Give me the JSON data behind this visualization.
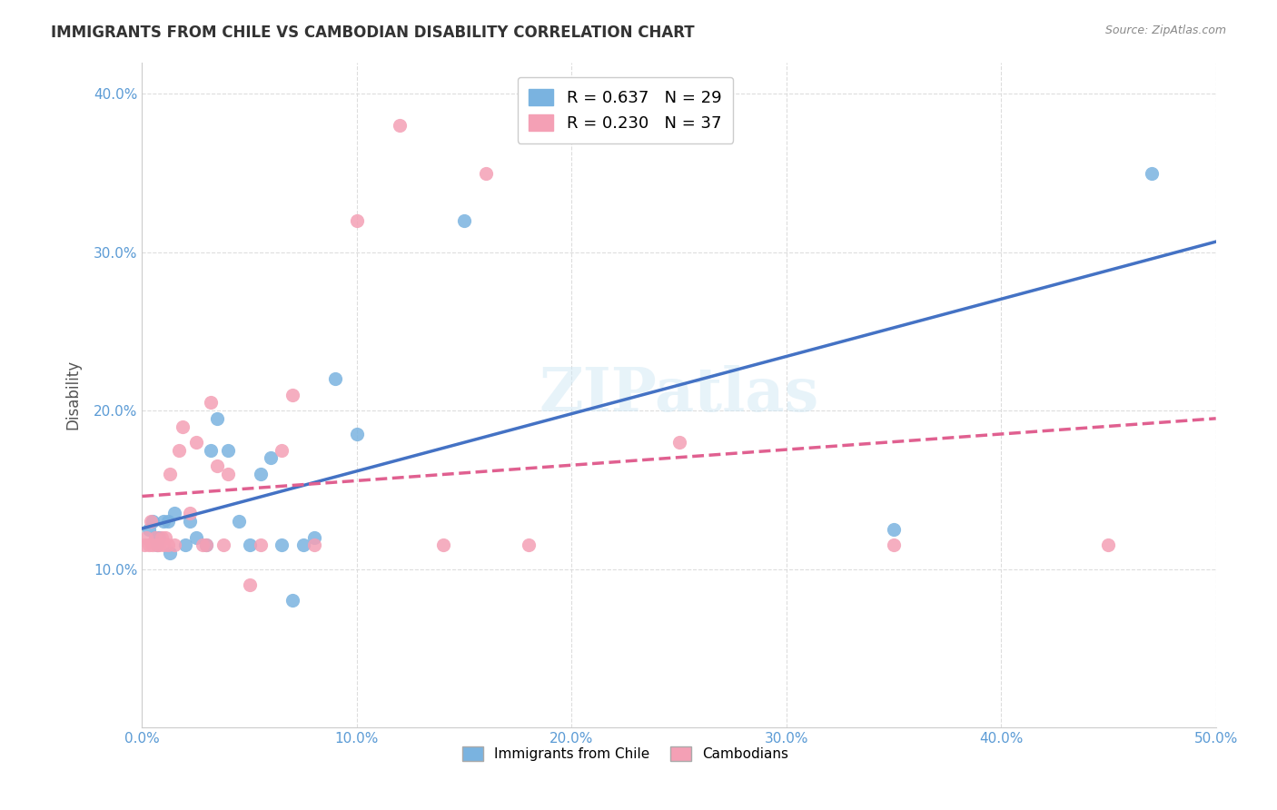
{
  "title": "IMMIGRANTS FROM CHILE VS CAMBODIAN DISABILITY CORRELATION CHART",
  "source": "Source: ZipAtlas.com",
  "xlabel_color": "#5b9bd5",
  "ylabel": "Disability",
  "xlim": [
    0.0,
    0.5
  ],
  "ylim": [
    0.0,
    0.42
  ],
  "xticks": [
    0.0,
    0.1,
    0.2,
    0.3,
    0.4,
    0.5
  ],
  "yticks": [
    0.1,
    0.2,
    0.3,
    0.4
  ],
  "ytick_labels": [
    "10.0%",
    "20.0%",
    "30.0%",
    "40.0%"
  ],
  "xtick_labels": [
    "0.0%",
    "10.0%",
    "20.0%",
    "30.0%",
    "40.0%",
    "50.0%"
  ],
  "legend_r1": "R = 0.637",
  "legend_n1": "N = 29",
  "legend_r2": "R = 0.230",
  "legend_n2": "N = 37",
  "blue_color": "#7ab3e0",
  "pink_color": "#f4a0b5",
  "blue_line_color": "#4472c4",
  "pink_line_color": "#e06090",
  "watermark": "ZIPatlas",
  "blue_scatter_x": [
    0.003,
    0.005,
    0.006,
    0.007,
    0.008,
    0.01,
    0.012,
    0.013,
    0.015,
    0.02,
    0.022,
    0.025,
    0.03,
    0.032,
    0.035,
    0.04,
    0.045,
    0.05,
    0.055,
    0.06,
    0.065,
    0.07,
    0.075,
    0.08,
    0.09,
    0.1,
    0.15,
    0.35,
    0.47
  ],
  "blue_scatter_y": [
    0.125,
    0.13,
    0.12,
    0.115,
    0.12,
    0.13,
    0.13,
    0.11,
    0.135,
    0.115,
    0.13,
    0.12,
    0.115,
    0.175,
    0.195,
    0.175,
    0.13,
    0.115,
    0.16,
    0.17,
    0.115,
    0.08,
    0.115,
    0.12,
    0.22,
    0.185,
    0.32,
    0.125,
    0.35
  ],
  "pink_scatter_x": [
    0.001,
    0.002,
    0.003,
    0.004,
    0.005,
    0.006,
    0.007,
    0.008,
    0.009,
    0.01,
    0.011,
    0.012,
    0.013,
    0.015,
    0.017,
    0.019,
    0.022,
    0.025,
    0.028,
    0.03,
    0.032,
    0.035,
    0.038,
    0.04,
    0.05,
    0.055,
    0.065,
    0.07,
    0.08,
    0.1,
    0.12,
    0.14,
    0.16,
    0.18,
    0.25,
    0.35,
    0.45
  ],
  "pink_scatter_y": [
    0.115,
    0.12,
    0.115,
    0.13,
    0.115,
    0.12,
    0.115,
    0.115,
    0.12,
    0.115,
    0.12,
    0.115,
    0.16,
    0.115,
    0.175,
    0.19,
    0.135,
    0.18,
    0.115,
    0.115,
    0.205,
    0.165,
    0.115,
    0.16,
    0.09,
    0.115,
    0.175,
    0.21,
    0.115,
    0.32,
    0.38,
    0.115,
    0.35,
    0.115,
    0.18,
    0.115,
    0.115
  ]
}
